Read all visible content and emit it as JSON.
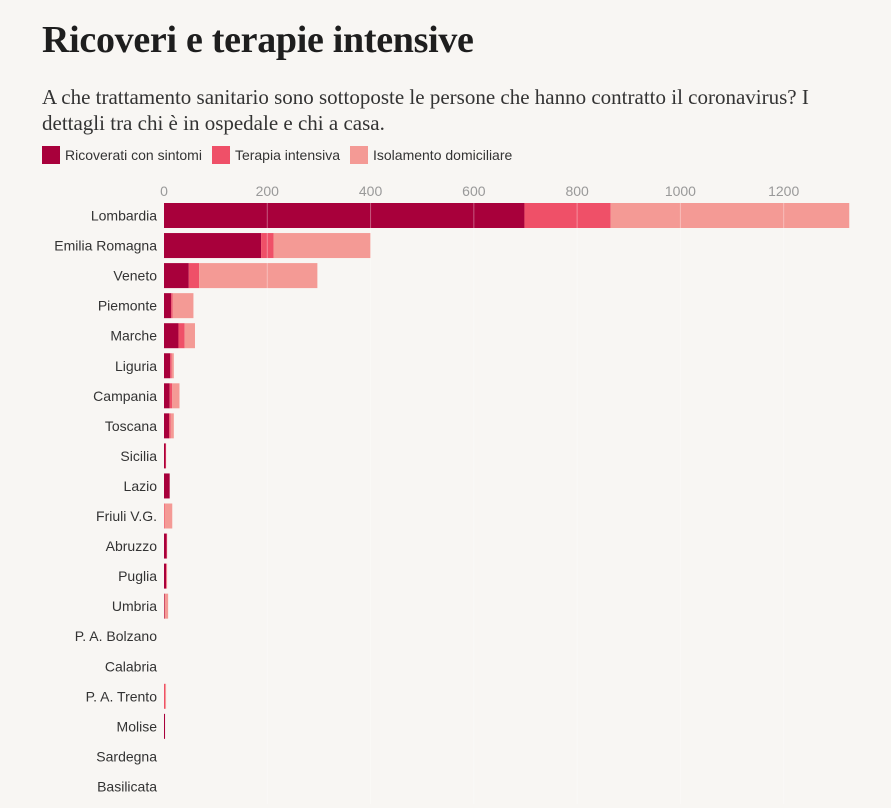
{
  "title": "Ricoveri e terapie intensive",
  "subtitle": "A che trattamento sanitario sono sottoposte le persone che hanno contratto il coronavirus? I dettagli tra chi è in ospedale e chi a casa.",
  "chart_data": {
    "type": "bar",
    "orientation": "horizontal",
    "stacked": true,
    "xlim": [
      0,
      1320
    ],
    "xticks": [
      0,
      200,
      400,
      600,
      800,
      1000,
      1200
    ],
    "grid": true,
    "legend_position": "top-left",
    "categories": [
      "Lombardia",
      "Emilia Romagna",
      "Veneto",
      "Piemonte",
      "Marche",
      "Liguria",
      "Campania",
      "Toscana",
      "Sicilia",
      "Lazio",
      "Friuli V.G.",
      "Abruzzo",
      "Puglia",
      "Umbria",
      "P. A. Bolzano",
      "Calabria",
      "P. A. Trento",
      "Molise",
      "Sardegna",
      "Basilicata"
    ],
    "series": [
      {
        "name": "Ricoverati con sintomi",
        "color": "#a8003b",
        "values": [
          698,
          188,
          48,
          14,
          28,
          12,
          11,
          10,
          3,
          11,
          0,
          5,
          4,
          1,
          0,
          0,
          0,
          2,
          0,
          0
        ]
      },
      {
        "name": "Terapia intensiva",
        "color": "#ef5068",
        "values": [
          167,
          24,
          20,
          3,
          12,
          3,
          5,
          3,
          1,
          0,
          1,
          1,
          1,
          0,
          0,
          0,
          2,
          0,
          0,
          0
        ]
      },
      {
        "name": "Isolamento domiciliare",
        "color": "#f49a95",
        "values": [
          462,
          188,
          229,
          40,
          20,
          4,
          14,
          6,
          0,
          0,
          15,
          0,
          1,
          7,
          0,
          0,
          2,
          0,
          0,
          0
        ]
      }
    ]
  }
}
